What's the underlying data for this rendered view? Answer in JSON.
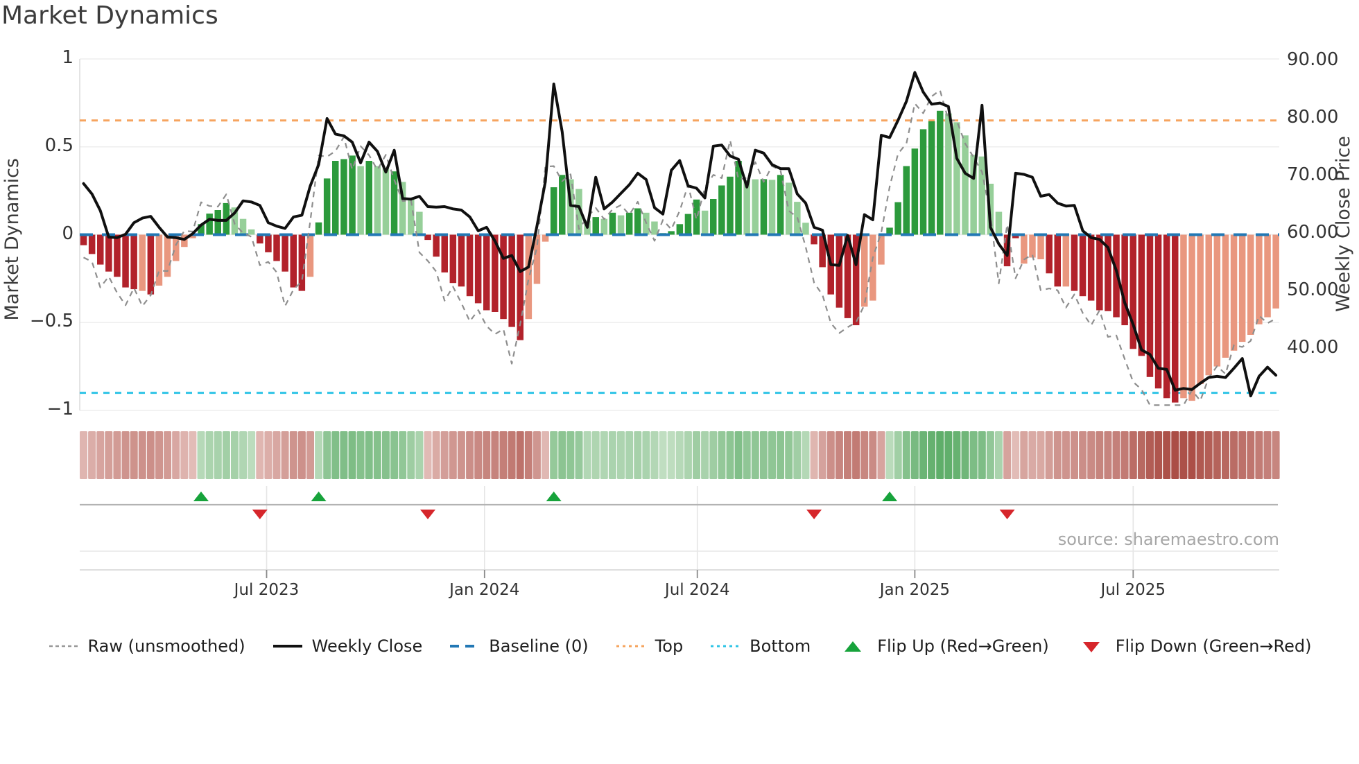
{
  "title": "Market Dynamics",
  "source_note": "source: sharemaestro.com",
  "axes": {
    "left_label": "Market Dynamics",
    "right_label": "Weekly Close Price",
    "left_tick_labels": [
      "1",
      "0.5",
      "0",
      "−0.5",
      "−1"
    ],
    "right_tick_labels": [
      "90.00",
      "80.00",
      "70.00",
      "60.00",
      "50.00",
      "40.00"
    ],
    "x_tick_labels": [
      "Jul 2023",
      "Jan 2024",
      "Jul 2024",
      "Jan 2025",
      "Jul 2025"
    ]
  },
  "legend": {
    "items": [
      {
        "label": "Raw (unsmoothed)",
        "swatch": "dashed-gray-line"
      },
      {
        "label": "Weekly Close",
        "swatch": "solid-black-line"
      },
      {
        "label": "Baseline (0)",
        "swatch": "dashed-blue-line"
      },
      {
        "label": "Top",
        "swatch": "dotted-orange-line"
      },
      {
        "label": "Bottom",
        "swatch": "dotted-cyan-line"
      },
      {
        "label": "Flip Up (Red→Green)",
        "swatch": "green-up-triangle"
      },
      {
        "label": "Flip Down (Green→Red)",
        "swatch": "red-down-triangle"
      }
    ]
  },
  "colors": {
    "bar_pos_dark": "#2c9a3c",
    "bar_pos_light": "#96cf99",
    "bar_neg_dark": "#b2222b",
    "bar_neg_light": "#e9977f",
    "price_line": "#101010",
    "raw_line": "#8e8e8e",
    "baseline": "#2278b5",
    "top_line": "#f6a45f",
    "bottom_line": "#2fc4e6",
    "flip_up": "#17a33b",
    "flip_down": "#d6262b",
    "heat_pos_deep": "#3f9e4d",
    "heat_pos_pale": "#e9f2e6",
    "heat_neg_deep": "#a94a42",
    "heat_neg_pale": "#f6e3df",
    "grid": "#ededed",
    "axis_text": "#333333"
  },
  "chart_data": {
    "type": "bar+line",
    "x_unit": "week",
    "left_axis": {
      "label": "Market Dynamics",
      "ticks": [
        1,
        0.5,
        0,
        -0.5,
        -1
      ],
      "range": [
        -1,
        1
      ]
    },
    "right_axis": {
      "label": "Weekly Close Price",
      "ticks": [
        90,
        80,
        70,
        60,
        50,
        40
      ]
    },
    "x_ticks": [
      {
        "label": "Jul 2023",
        "week": 21.8
      },
      {
        "label": "Jan 2024",
        "week": 47.75
      },
      {
        "label": "Jul 2024",
        "week": 73.1
      },
      {
        "label": "Jan 2025",
        "week": 99.0
      },
      {
        "label": "Jul 2025",
        "week": 125.0
      }
    ],
    "baseline": 0,
    "top_threshold": 0.65,
    "bottom_threshold": -0.9,
    "flip_up_weeks": [
      14,
      28,
      56,
      96
    ],
    "flip_down_weeks": [
      21,
      41,
      87,
      110
    ],
    "oscillator_bars": [
      [
        -0.06,
        "d"
      ],
      [
        -0.11,
        "d"
      ],
      [
        -0.17,
        "d"
      ],
      [
        -0.21,
        "d"
      ],
      [
        -0.24,
        "d"
      ],
      [
        -0.3,
        "d"
      ],
      [
        -0.31,
        "d"
      ],
      [
        -0.32,
        "l"
      ],
      [
        -0.34,
        "d"
      ],
      [
        -0.29,
        "l"
      ],
      [
        -0.24,
        "l"
      ],
      [
        -0.15,
        "l"
      ],
      [
        -0.07,
        "l"
      ],
      [
        -0.02,
        "l"
      ],
      [
        0.06,
        "d"
      ],
      [
        0.12,
        "d"
      ],
      [
        0.14,
        "d"
      ],
      [
        0.18,
        "d"
      ],
      [
        0.155,
        "l"
      ],
      [
        0.09,
        "l"
      ],
      [
        0.03,
        "l"
      ],
      [
        -0.05,
        "d"
      ],
      [
        -0.1,
        "d"
      ],
      [
        -0.15,
        "d"
      ],
      [
        -0.21,
        "d"
      ],
      [
        -0.3,
        "d"
      ],
      [
        -0.32,
        "d"
      ],
      [
        -0.24,
        "l"
      ],
      [
        0.07,
        "d"
      ],
      [
        0.32,
        "d"
      ],
      [
        0.42,
        "d"
      ],
      [
        0.43,
        "d"
      ],
      [
        0.45,
        "d"
      ],
      [
        0.39,
        "l"
      ],
      [
        0.42,
        "d"
      ],
      [
        0.39,
        "l"
      ],
      [
        0.38,
        "l"
      ],
      [
        0.36,
        "d"
      ],
      [
        0.3,
        "l"
      ],
      [
        0.21,
        "l"
      ],
      [
        0.13,
        "l"
      ],
      [
        -0.03,
        "d"
      ],
      [
        -0.125,
        "d"
      ],
      [
        -0.215,
        "d"
      ],
      [
        -0.275,
        "d"
      ],
      [
        -0.295,
        "d"
      ],
      [
        -0.35,
        "d"
      ],
      [
        -0.39,
        "d"
      ],
      [
        -0.43,
        "d"
      ],
      [
        -0.44,
        "d"
      ],
      [
        -0.48,
        "d"
      ],
      [
        -0.525,
        "d"
      ],
      [
        -0.6,
        "d"
      ],
      [
        -0.48,
        "l"
      ],
      [
        -0.28,
        "l"
      ],
      [
        -0.04,
        "l"
      ],
      [
        0.27,
        "d"
      ],
      [
        0.34,
        "d"
      ],
      [
        0.315,
        "l"
      ],
      [
        0.26,
        "l"
      ],
      [
        0.08,
        "l"
      ],
      [
        0.1,
        "d"
      ],
      [
        0.09,
        "l"
      ],
      [
        0.125,
        "d"
      ],
      [
        0.11,
        "l"
      ],
      [
        0.125,
        "d"
      ],
      [
        0.15,
        "d"
      ],
      [
        0.125,
        "l"
      ],
      [
        0.075,
        "l"
      ],
      [
        0.01,
        "l"
      ],
      [
        0.02,
        "d"
      ],
      [
        0.06,
        "d"
      ],
      [
        0.118,
        "d"
      ],
      [
        0.2,
        "d"
      ],
      [
        0.137,
        "l"
      ],
      [
        0.203,
        "d"
      ],
      [
        0.28,
        "d"
      ],
      [
        0.33,
        "d"
      ],
      [
        0.42,
        "d"
      ],
      [
        0.31,
        "l"
      ],
      [
        0.315,
        "l"
      ],
      [
        0.316,
        "d"
      ],
      [
        0.312,
        "l"
      ],
      [
        0.34,
        "d"
      ],
      [
        0.296,
        "l"
      ],
      [
        0.187,
        "l"
      ],
      [
        0.068,
        "l"
      ],
      [
        -0.055,
        "d"
      ],
      [
        -0.185,
        "d"
      ],
      [
        -0.34,
        "d"
      ],
      [
        -0.415,
        "d"
      ],
      [
        -0.475,
        "d"
      ],
      [
        -0.515,
        "d"
      ],
      [
        -0.41,
        "l"
      ],
      [
        -0.375,
        "l"
      ],
      [
        -0.17,
        "l"
      ],
      [
        0.04,
        "d"
      ],
      [
        0.185,
        "d"
      ],
      [
        0.39,
        "d"
      ],
      [
        0.49,
        "d"
      ],
      [
        0.6,
        "d"
      ],
      [
        0.645,
        "d"
      ],
      [
        0.705,
        "d"
      ],
      [
        0.69,
        "l"
      ],
      [
        0.64,
        "l"
      ],
      [
        0.565,
        "l"
      ],
      [
        0.455,
        "l"
      ],
      [
        0.445,
        "l"
      ],
      [
        0.29,
        "l"
      ],
      [
        0.13,
        "l"
      ],
      [
        -0.18,
        "d"
      ],
      [
        -0.02,
        "d"
      ],
      [
        -0.165,
        "l"
      ],
      [
        -0.13,
        "l"
      ],
      [
        -0.14,
        "l"
      ],
      [
        -0.22,
        "d"
      ],
      [
        -0.295,
        "d"
      ],
      [
        -0.295,
        "l"
      ],
      [
        -0.32,
        "d"
      ],
      [
        -0.35,
        "d"
      ],
      [
        -0.375,
        "d"
      ],
      [
        -0.43,
        "d"
      ],
      [
        -0.435,
        "d"
      ],
      [
        -0.47,
        "d"
      ],
      [
        -0.515,
        "d"
      ],
      [
        -0.65,
        "d"
      ],
      [
        -0.69,
        "d"
      ],
      [
        -0.81,
        "d"
      ],
      [
        -0.875,
        "d"
      ],
      [
        -0.93,
        "d"
      ],
      [
        -0.955,
        "d"
      ],
      [
        -0.93,
        "l"
      ],
      [
        -0.945,
        "l"
      ],
      [
        -0.85,
        "l"
      ],
      [
        -0.8,
        "l"
      ],
      [
        -0.75,
        "l"
      ],
      [
        -0.7,
        "l"
      ],
      [
        -0.66,
        "l"
      ],
      [
        -0.61,
        "l"
      ],
      [
        -0.57,
        "l"
      ],
      [
        -0.51,
        "l"
      ],
      [
        -0.47,
        "l"
      ],
      [
        -0.42,
        "l"
      ]
    ],
    "weekly_close": [
      68.7,
      66.9,
      64.0,
      59.4,
      59.3,
      59.9,
      61.9,
      62.7,
      63.0,
      61.1,
      59.4,
      59.3,
      59.0,
      60.0,
      61.5,
      62.5,
      62.3,
      62.3,
      63.6,
      65.7,
      65.5,
      64.9,
      61.9,
      61.3,
      60.9,
      62.9,
      63.2,
      68.3,
      72.0,
      80.0,
      77.3,
      77.0,
      75.9,
      72.3,
      75.9,
      74.3,
      70.7,
      74.5,
      66.1,
      66.0,
      66.5,
      64.7,
      64.6,
      64.7,
      64.3,
      64.1,
      62.9,
      60.5,
      61.1,
      58.7,
      55.7,
      56.2,
      53.4,
      54.2,
      61.3,
      69.0,
      86.0,
      77.7,
      64.9,
      64.7,
      61.1,
      69.8,
      64.3,
      65.5,
      67.0,
      68.5,
      70.5,
      69.4,
      64.5,
      63.4,
      71.0,
      72.7,
      68.3,
      67.9,
      66.2,
      75.2,
      75.4,
      73.5,
      72.9,
      68.1,
      74.5,
      74.0,
      72.0,
      71.3,
      71.3,
      66.9,
      65.3,
      61.1,
      60.6,
      54.6,
      54.5,
      59.7,
      54.6,
      63.3,
      62.4,
      77.1,
      76.7,
      79.7,
      83.0,
      88.0,
      84.6,
      82.5,
      82.7,
      82.1,
      73.1,
      70.5,
      69.6,
      82.3,
      61.1,
      58.2,
      56.2,
      70.5,
      70.3,
      69.8,
      66.5,
      66.8,
      65.3,
      64.8,
      64.9,
      60.5,
      59.3,
      59.0,
      57.6,
      53.6,
      48.0,
      44.2,
      39.8,
      39.0,
      36.6,
      36.4,
      32.8,
      33.1,
      32.9,
      34.0,
      35.0,
      35.2,
      35.0,
      36.6,
      38.3,
      31.8,
      35.2,
      36.8,
      35.4
    ],
    "raw_line_params": {
      "gain": 1.12,
      "lead": 1.25,
      "noise_amp": 0.06,
      "clamp": 0.97
    },
    "heatmap": "mirrors oscillator_bars values as red-green intensity strip"
  }
}
